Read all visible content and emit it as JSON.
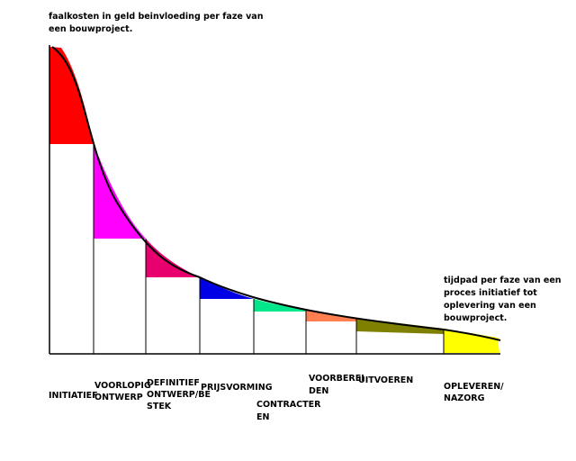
{
  "title_lines": [
    "faalkosten in geld beinvloeding per faze van",
    "een bouwproject."
  ],
  "note_lines": [
    "tijdpad per faze van een",
    "proces initiatief tot",
    "oplevering van een",
    "bouwproject."
  ],
  "phases": [
    {
      "lines": [
        "INITIATIEF"
      ],
      "color": "#ff0000"
    },
    {
      "lines": [
        "VOORLOPIG",
        "ONTWERP"
      ],
      "color": "#ff00ff"
    },
    {
      "lines": [
        "DEFINITIEF",
        "ONTWERP/BE",
        "STEK"
      ],
      "color": "#e8006f"
    },
    {
      "lines": [
        "PRIJSVORMING"
      ],
      "color": "#0000e6"
    },
    {
      "lines": [
        "CONTRACTER",
        "EN"
      ],
      "color": "#00e68a"
    },
    {
      "lines": [
        "VOORBEREI",
        "DEN"
      ],
      "color": "#ff7f50"
    },
    {
      "lines": [
        "UITVOEREN"
      ],
      "color": "#808000"
    },
    {
      "lines": [
        "OPLEVEREN/",
        "NAZORG"
      ],
      "color": "#ffff00"
    }
  ]
}
